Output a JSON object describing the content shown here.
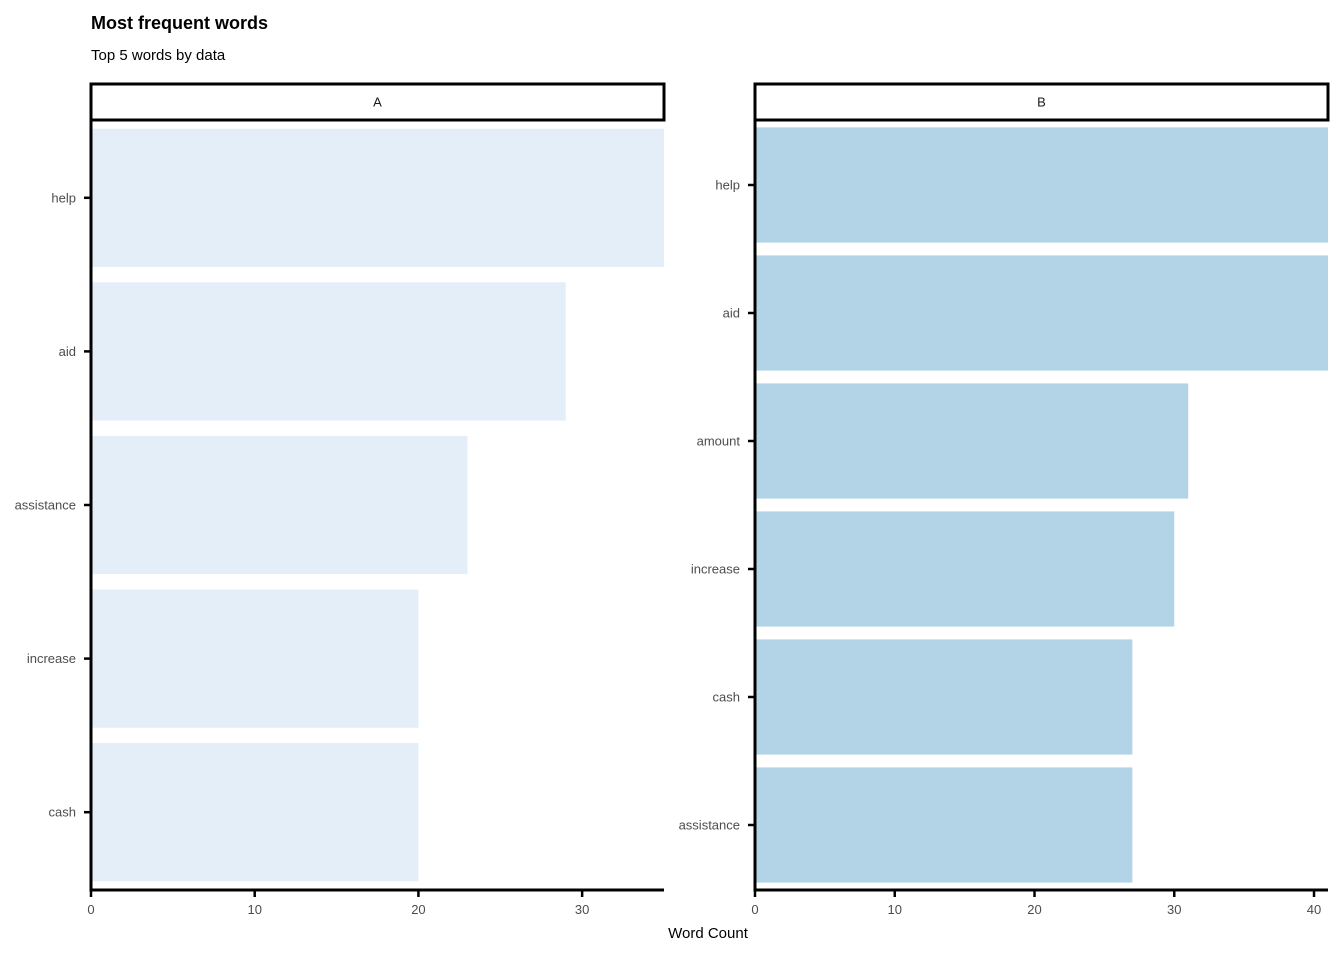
{
  "chart_data": {
    "type": "bar",
    "orientation": "horizontal",
    "title": "Most frequent words",
    "subtitle": "Top 5 words by data",
    "xlabel": "Word Count",
    "ylabel": "",
    "grid": false,
    "legend": "none",
    "panels": [
      {
        "name": "A",
        "color": "#e3eef8",
        "categories": [
          "help",
          "aid",
          "assistance",
          "increase",
          "cash"
        ],
        "values": [
          35,
          29,
          23,
          20,
          20
        ],
        "xlim": [
          0,
          35
        ],
        "xticks": [
          0,
          10,
          20,
          30
        ]
      },
      {
        "name": "B",
        "color": "#b2d4e6",
        "categories": [
          "help",
          "aid",
          "amount",
          "increase",
          "cash",
          "assistance"
        ],
        "values": [
          41,
          41,
          31,
          30,
          27,
          27
        ],
        "xlim": [
          0,
          41
        ],
        "xticks": [
          0,
          10,
          20,
          30,
          40
        ]
      }
    ]
  }
}
